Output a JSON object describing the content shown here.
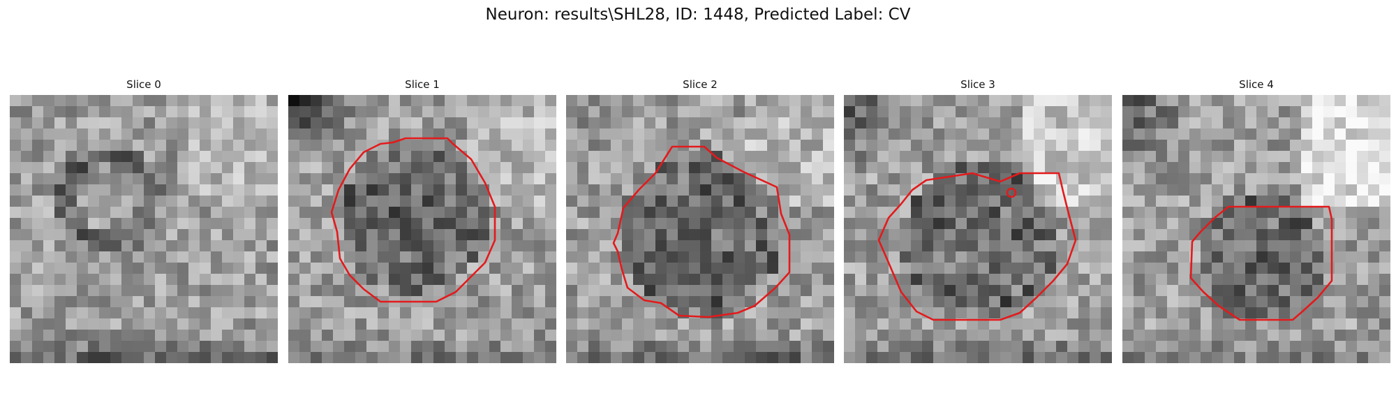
{
  "figure": {
    "title": "Neuron: results\\SHL28, ID: 1448, Predicted Label: CV"
  },
  "colors": {
    "contour": "#e31a1c",
    "background": "#ffffff"
  },
  "slices": [
    {
      "title": "Slice 0",
      "has_contour": false
    },
    {
      "title": "Slice 1",
      "has_contour": true
    },
    {
      "title": "Slice 2",
      "has_contour": true
    },
    {
      "title": "Slice 3",
      "has_contour": true
    },
    {
      "title": "Slice 4",
      "has_contour": true
    }
  ]
}
